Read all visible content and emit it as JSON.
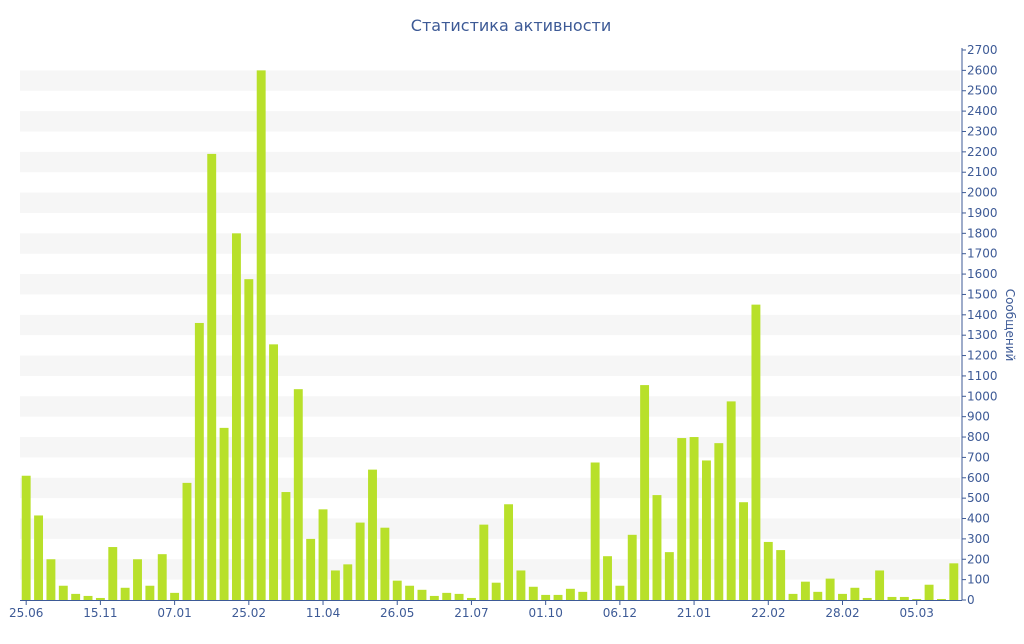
{
  "chart_data": {
    "type": "bar",
    "title": "Статистика активности",
    "ylabel": "Сообщений",
    "xlabel": "",
    "ylim": [
      0,
      2700
    ],
    "y_ticks": [
      0,
      100,
      200,
      300,
      400,
      500,
      600,
      700,
      800,
      900,
      1000,
      1100,
      1200,
      1300,
      1400,
      1500,
      1600,
      1700,
      1800,
      1900,
      2000,
      2100,
      2200,
      2300,
      2400,
      2500,
      2600,
      2700
    ],
    "y_axis_position": "right",
    "grid": "alternating horizontal bands",
    "x_tick_labels": [
      {
        "label": "25.06",
        "index": 0
      },
      {
        "label": "15.11",
        "index": 6
      },
      {
        "label": "07.01",
        "index": 12
      },
      {
        "label": "25.02",
        "index": 18
      },
      {
        "label": "11.04",
        "index": 24
      },
      {
        "label": "26.05",
        "index": 30
      },
      {
        "label": "21.07",
        "index": 36
      },
      {
        "label": "01.10",
        "index": 42
      },
      {
        "label": "06.12",
        "index": 48
      },
      {
        "label": "21.01",
        "index": 54
      },
      {
        "label": "22.02",
        "index": 60
      },
      {
        "label": "28.02",
        "index": 66
      },
      {
        "label": "05.03",
        "index": 72
      }
    ],
    "values": [
      610,
      415,
      200,
      70,
      30,
      20,
      10,
      260,
      60,
      200,
      70,
      225,
      35,
      575,
      1360,
      2190,
      845,
      1800,
      1575,
      2600,
      1255,
      530,
      1035,
      300,
      445,
      145,
      175,
      380,
      640,
      355,
      95,
      70,
      50,
      20,
      35,
      30,
      10,
      370,
      85,
      470,
      145,
      65,
      25,
      25,
      55,
      40,
      675,
      215,
      70,
      320,
      1055,
      515,
      235,
      795,
      800,
      685,
      770,
      975,
      480,
      1450,
      285,
      245,
      30,
      90,
      40,
      105,
      30,
      60,
      10,
      145,
      15,
      15,
      5,
      75,
      5,
      180
    ],
    "colors": {
      "bar": "#b8e02a",
      "text": "#3d5a96",
      "axis": "#3d5a96",
      "band": "#f6f6f6"
    }
  }
}
